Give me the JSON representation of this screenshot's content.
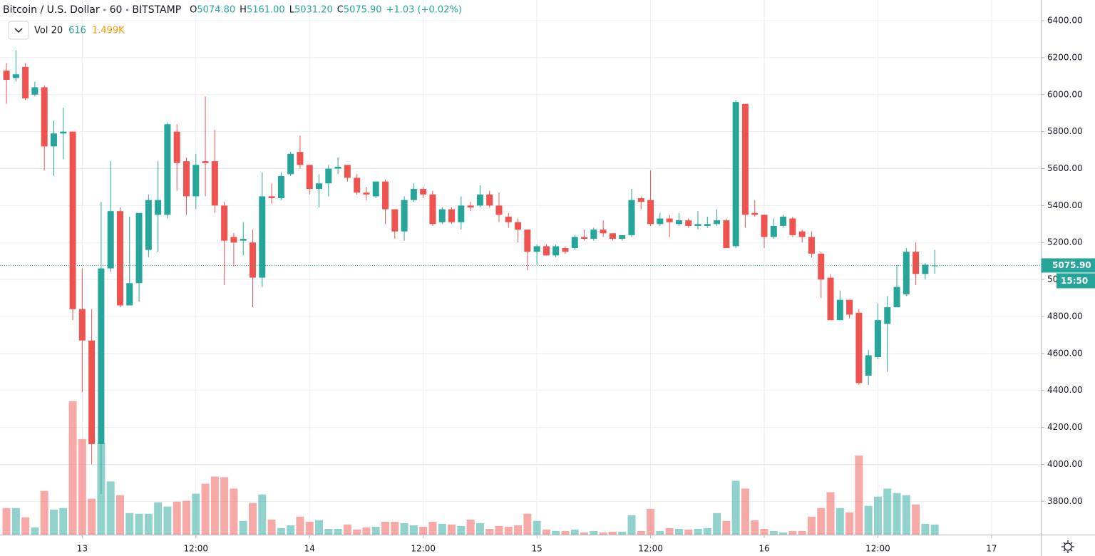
{
  "chart_data": {
    "type": "candlestick",
    "legend": {
      "symbol": "Bitcoin / U.S. Dollar",
      "interval": "60",
      "exchange": "BITSTAMP",
      "ohlc": [
        {
          "key": "O",
          "value": "5074.80"
        },
        {
          "key": "H",
          "value": "5161.00"
        },
        {
          "key": "L",
          "value": "5031.20"
        },
        {
          "key": "C",
          "value": "5075.90"
        }
      ],
      "change": "+1.03 (+0.02%)",
      "volume_name": "Vol 20",
      "volume_value": "616",
      "volume_ma": "1.499K"
    },
    "x": [
      0,
      1,
      2,
      3,
      4,
      5,
      6,
      7,
      8,
      9,
      10,
      11,
      12,
      13,
      14,
      15,
      16,
      17,
      18,
      19,
      20,
      21,
      22,
      23,
      24,
      25,
      26,
      27,
      28,
      29,
      30,
      31,
      32,
      33,
      34,
      35,
      36,
      37,
      38,
      39,
      40,
      41,
      42,
      43,
      44,
      45,
      46,
      47,
      48,
      49,
      50,
      51,
      52,
      53,
      54,
      55,
      56,
      57,
      58,
      59,
      60,
      61,
      62,
      63,
      64,
      65,
      66,
      67,
      68,
      69,
      70,
      71,
      72,
      73,
      74,
      75,
      76,
      77,
      78,
      79,
      80,
      81,
      82,
      83,
      84,
      85,
      86,
      87,
      88,
      89,
      90,
      91,
      92,
      93,
      94,
      95,
      96,
      97,
      98
    ],
    "open": [
      6130,
      6090,
      6150,
      6000,
      6040,
      5720,
      5790,
      5800,
      4840,
      4670,
      4110,
      5060,
      5370,
      4860,
      4980,
      5160,
      5350,
      5350,
      5800,
      5640,
      5450,
      5640,
      5640,
      5400,
      5230,
      5210,
      5200,
      5010,
      5450,
      5440,
      5570,
      5690,
      5620,
      5490,
      5520,
      5600,
      5620,
      5550,
      5470,
      5450,
      5530,
      5380,
      5260,
      5430,
      5490,
      5460,
      5310,
      5380,
      5310,
      5400,
      5400,
      5460,
      5400,
      5340,
      5310,
      5270,
      5150,
      5180,
      5130,
      5170,
      5170,
      5230,
      5220,
      5270,
      5250,
      5220,
      5240,
      5440,
      5430,
      5300,
      5330,
      5300,
      5320,
      5290,
      5290,
      5300,
      5320,
      5180,
      5950,
      5360,
      5350,
      5230,
      5290,
      5330,
      5260,
      5230,
      5140,
      5010,
      4780,
      4890,
      4820,
      4480,
      4580,
      4760,
      4850,
      4920,
      5150,
      5030,
      5074.8
    ],
    "high": [
      6170,
      6240,
      6170,
      6070,
      6050,
      5860,
      5930,
      5800,
      5060,
      4840,
      5420,
      5640,
      5390,
      5340,
      5360,
      5460,
      5640,
      5850,
      5840,
      5660,
      5680,
      5990,
      5810,
      5420,
      5250,
      5310,
      5270,
      5580,
      5520,
      5580,
      5690,
      5780,
      5620,
      5570,
      5620,
      5660,
      5620,
      5570,
      5500,
      5530,
      5540,
      5380,
      5450,
      5520,
      5500,
      5480,
      5390,
      5390,
      5450,
      5420,
      5510,
      5480,
      5470,
      5360,
      5330,
      5270,
      5190,
      5190,
      5190,
      5180,
      5240,
      5270,
      5280,
      5320,
      5250,
      5240,
      5490,
      5450,
      5590,
      5360,
      5350,
      5360,
      5330,
      5370,
      5340,
      5380,
      5330,
      5970,
      5950,
      5430,
      5350,
      5330,
      5350,
      5340,
      5270,
      5260,
      5150,
      5030,
      4940,
      4890,
      4840,
      4620,
      4870,
      4910,
      5080,
      5170,
      5200,
      5090,
      5161
    ],
    "low": [
      5950,
      6070,
      5970,
      5990,
      5590,
      5560,
      5650,
      4780,
      4390,
      4000,
      3840,
      5040,
      4850,
      4860,
      4880,
      5120,
      5150,
      5330,
      5480,
      5350,
      5380,
      5450,
      5360,
      4970,
      5070,
      5130,
      4850,
      4960,
      5410,
      5430,
      5560,
      5600,
      5460,
      5390,
      5450,
      5570,
      5530,
      5460,
      5430,
      5440,
      5300,
      5220,
      5210,
      5420,
      5440,
      5290,
      5300,
      5300,
      5270,
      5370,
      5390,
      5390,
      5310,
      5280,
      5200,
      5050,
      5080,
      5130,
      5120,
      5140,
      5160,
      5210,
      5210,
      5230,
      5210,
      5210,
      5230,
      5380,
      5290,
      5290,
      5230,
      5290,
      5280,
      5270,
      5280,
      5290,
      5170,
      5170,
      5280,
      5340,
      5170,
      5220,
      5280,
      5230,
      5200,
      5120,
      4900,
      4780,
      4780,
      4790,
      4430,
      4430,
      4570,
      4500,
      4850,
      4910,
      4970,
      5000,
      5031.2
    ],
    "close": [
      6080,
      6110,
      5980,
      6040,
      5720,
      5790,
      5800,
      4840,
      4670,
      4110,
      5060,
      5370,
      4860,
      4980,
      5360,
      5430,
      5430,
      5840,
      5630,
      5450,
      5620,
      5630,
      5400,
      5210,
      5200,
      5220,
      5010,
      5450,
      5440,
      5560,
      5680,
      5620,
      5490,
      5520,
      5600,
      5610,
      5550,
      5470,
      5460,
      5530,
      5380,
      5260,
      5430,
      5490,
      5460,
      5300,
      5380,
      5310,
      5400,
      5390,
      5460,
      5400,
      5350,
      5310,
      5270,
      5150,
      5180,
      5130,
      5180,
      5150,
      5230,
      5220,
      5270,
      5250,
      5220,
      5240,
      5430,
      5420,
      5300,
      5330,
      5310,
      5320,
      5290,
      5300,
      5300,
      5320,
      5170,
      5960,
      5350,
      5350,
      5230,
      5290,
      5340,
      5240,
      5230,
      5140,
      5000,
      4780,
      4890,
      4810,
      4440,
      4590,
      4780,
      4850,
      4960,
      5150,
      5030,
      5080,
      5075.9
    ],
    "volume": [
      1630,
      1630,
      1060,
      440,
      2680,
      1540,
      1630,
      8180,
      5850,
      2200,
      5630,
      3260,
      2420,
      1320,
      1280,
      1280,
      1980,
      1720,
      2020,
      2070,
      2510,
      3120,
      3560,
      3520,
      2820,
      840,
      1940,
      2460,
      920,
      400,
      570,
      1100,
      790,
      880,
      350,
      350,
      620,
      310,
      440,
      480,
      790,
      790,
      700,
      570,
      480,
      790,
      660,
      620,
      530,
      920,
      700,
      350,
      530,
      480,
      570,
      1280,
      840,
      310,
      220,
      220,
      310,
      130,
      220,
      130,
      180,
      180,
      1190,
      220,
      1580,
      220,
      400,
      350,
      310,
      350,
      400,
      1320,
      840,
      3300,
      2820,
      880,
      350,
      220,
      130,
      220,
      220,
      1100,
      1630,
      2600,
      1630,
      1360,
      4840,
      1760,
      2330,
      2820,
      2550,
      2420,
      1850,
      660,
      616
    ],
    "up_color": "#26a69a",
    "down_color": "#ef5350",
    "xlim": [
      -0.68,
      109.2
    ],
    "xticks": [
      {
        "value": 8,
        "label": "13"
      },
      {
        "value": 20,
        "label": "12:00"
      },
      {
        "value": 32,
        "label": "14"
      },
      {
        "value": 44,
        "label": "12:00"
      },
      {
        "value": 56,
        "label": "15"
      },
      {
        "value": 68,
        "label": "12:00"
      },
      {
        "value": 80,
        "label": "16"
      },
      {
        "value": 92,
        "label": "12:00"
      },
      {
        "value": 104,
        "label": "17"
      }
    ],
    "ylim": [
      3620,
      6512
    ],
    "yticks": [
      {
        "value": 3800,
        "label": "3800.00"
      },
      {
        "value": 4000,
        "label": "4000.00"
      },
      {
        "value": 4200,
        "label": "4200.00"
      },
      {
        "value": 4400,
        "label": "4400.00"
      },
      {
        "value": 4600,
        "label": "4600.00"
      },
      {
        "value": 4800,
        "label": "4800.00"
      },
      {
        "value": 5000,
        "label": "5000.00"
      },
      {
        "value": 5200,
        "label": "5200.00"
      },
      {
        "value": 5400,
        "label": "5400.00"
      },
      {
        "value": 5600,
        "label": "5600.00"
      },
      {
        "value": 5800,
        "label": "5800.00"
      },
      {
        "value": 6000,
        "label": "6000.00"
      },
      {
        "value": 6200,
        "label": "6200.00"
      },
      {
        "value": 6400,
        "label": "6400.00"
      }
    ],
    "volume_ylim": [
      0,
      8300
    ],
    "grid": true,
    "last_price": {
      "value": 5075.9,
      "label": "5075.90"
    },
    "countdown": "15:50"
  }
}
